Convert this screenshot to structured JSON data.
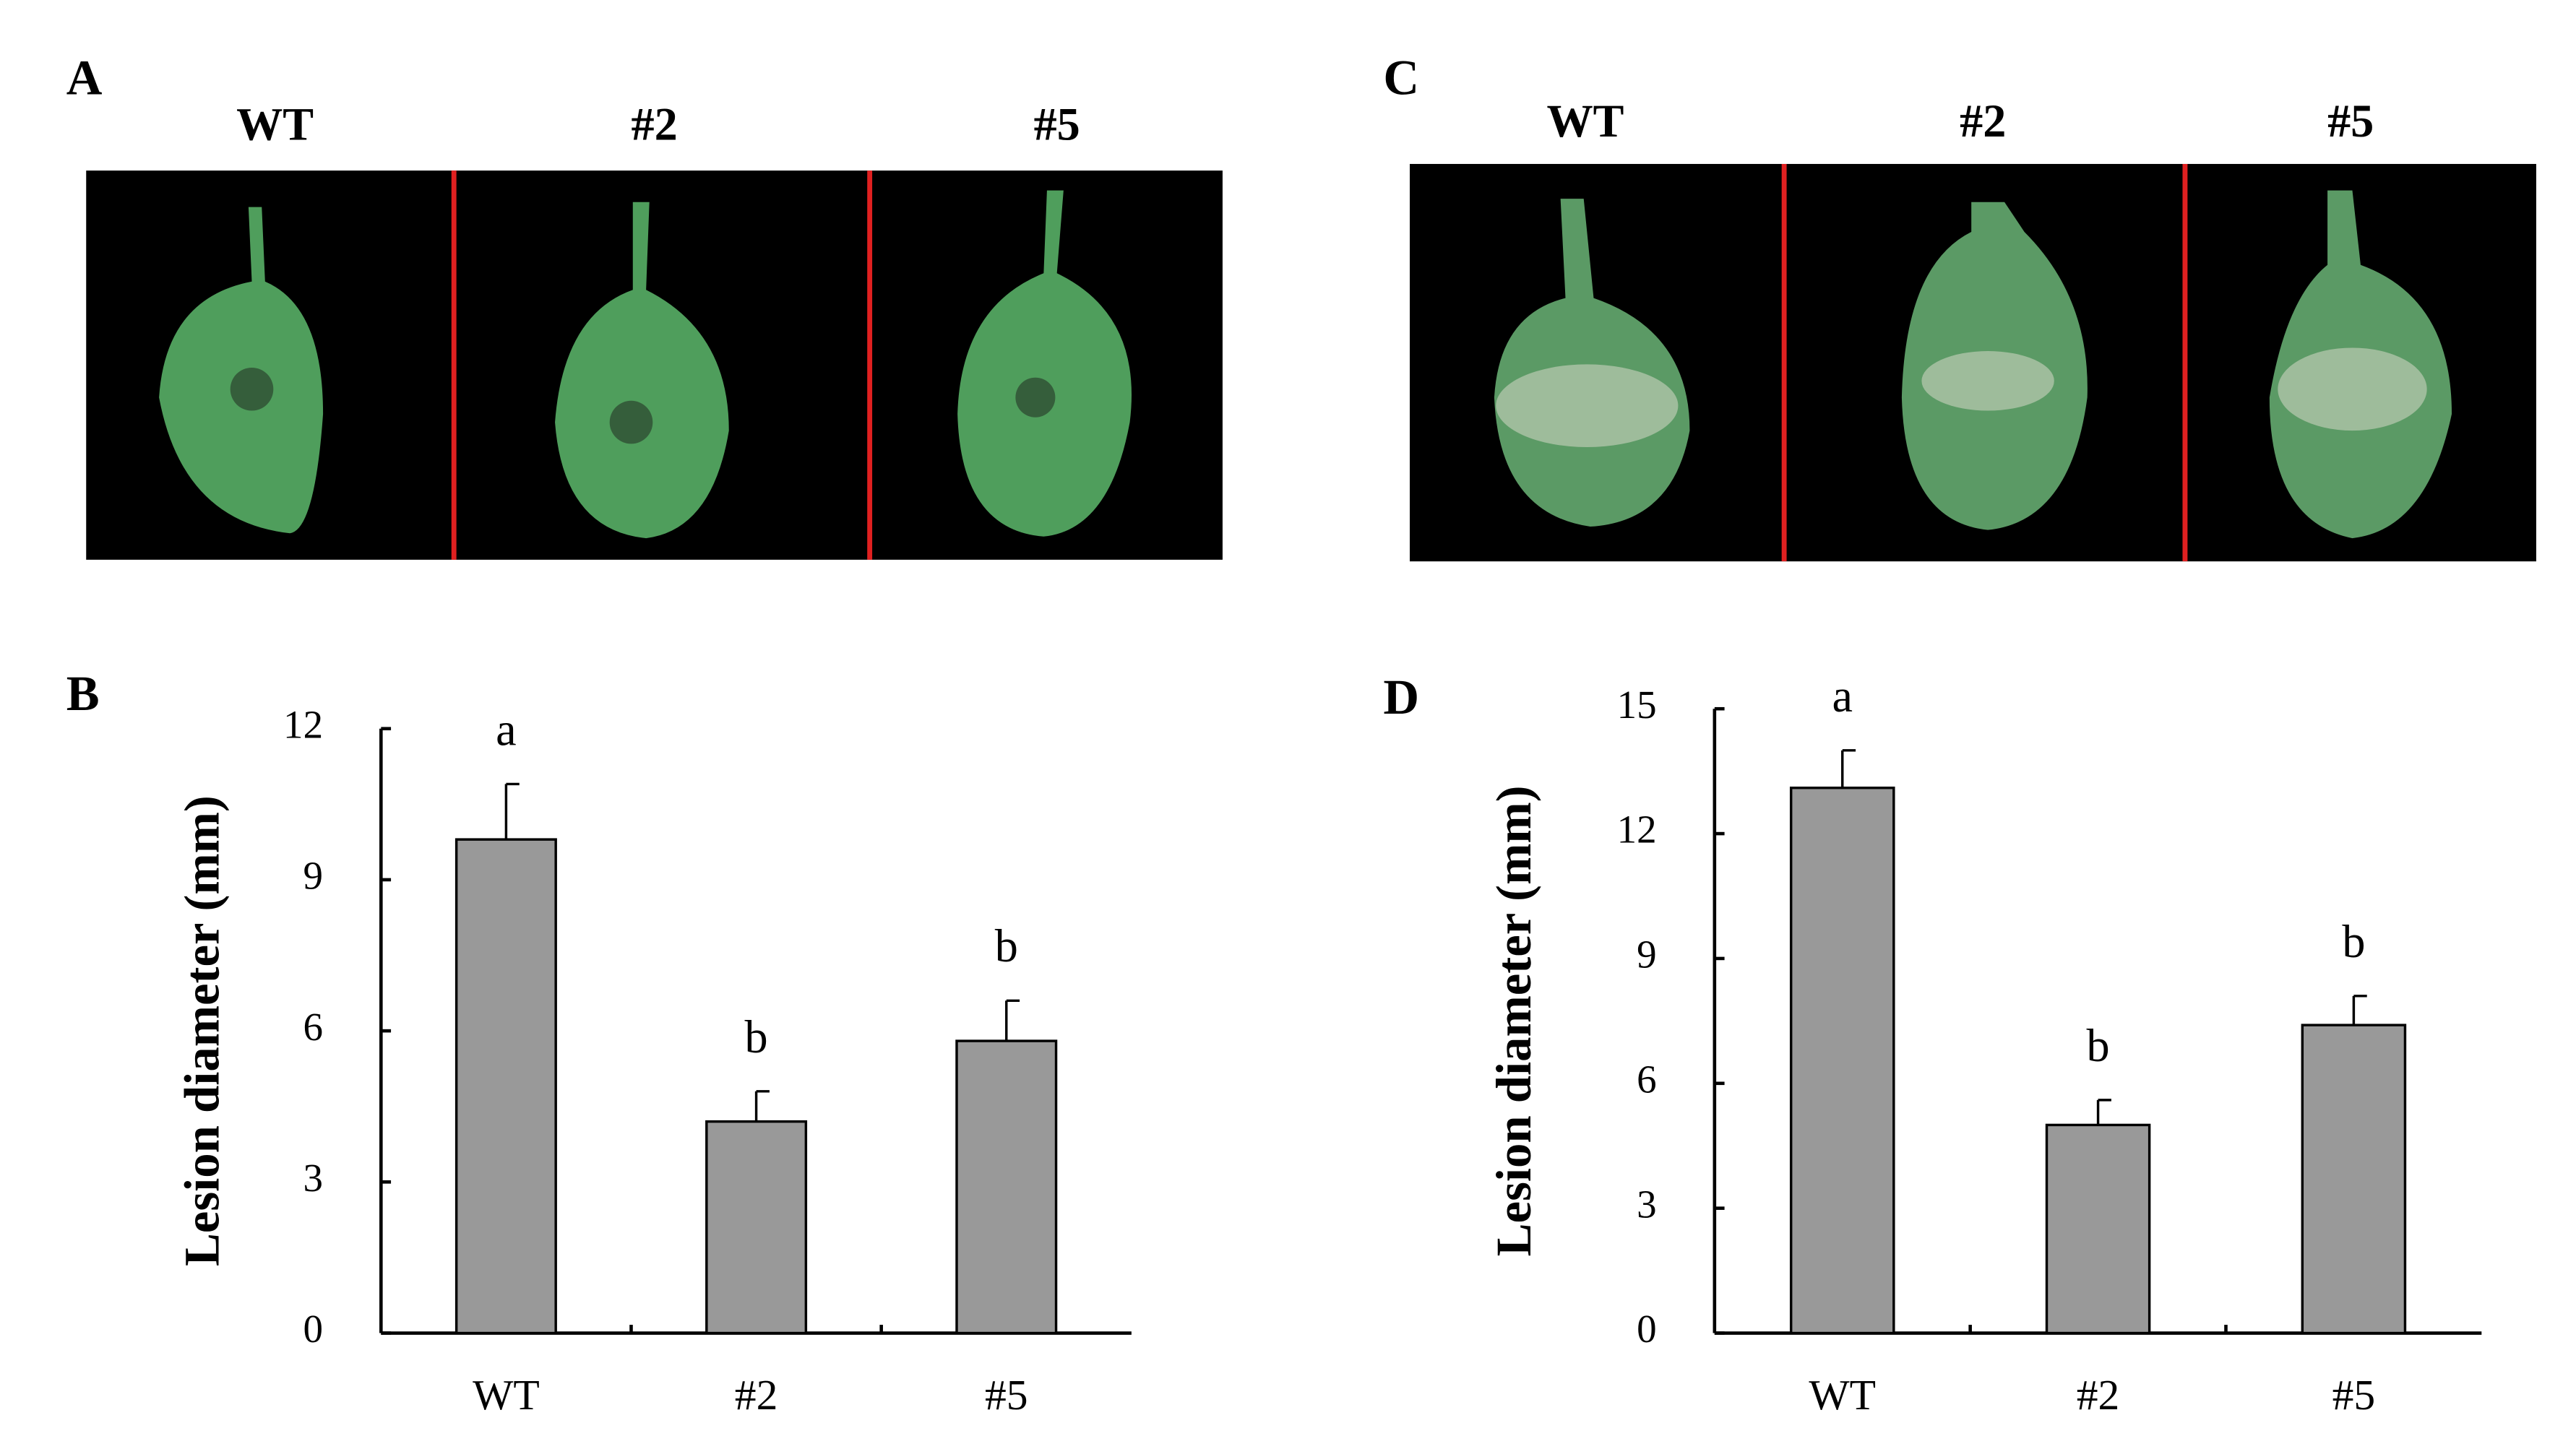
{
  "panels": [
    {
      "label": "A",
      "columns": [
        "WT",
        "#2",
        "#5"
      ]
    },
    {
      "label": "C",
      "columns": [
        "WT",
        "#2",
        "#5"
      ]
    }
  ],
  "chart_data": [
    {
      "type": "bar",
      "panel_label": "B",
      "y_label": "Lesion diameter (mm)",
      "categories": [
        "WT",
        "#2",
        "#5"
      ],
      "values": [
        9.8,
        4.2,
        5.8
      ],
      "errors": [
        1.1,
        0.6,
        0.8
      ],
      "letters": [
        "a",
        "b",
        "b"
      ],
      "color": "#999999",
      "ylim": [
        0,
        12
      ],
      "yticks": [
        0,
        3,
        6,
        9,
        12
      ]
    },
    {
      "type": "bar",
      "panel_label": "D",
      "y_label": "Lesion diameter (mm)",
      "categories": [
        "WT",
        "#2",
        "#5"
      ],
      "values": [
        13.1,
        5.0,
        7.4
      ],
      "errors": [
        0.9,
        0.6,
        0.7
      ],
      "letters": [
        "a",
        "b",
        "b"
      ],
      "color": "#999999",
      "ylim": [
        0,
        15
      ],
      "yticks": [
        0,
        3,
        6,
        9,
        12,
        15
      ]
    }
  ]
}
